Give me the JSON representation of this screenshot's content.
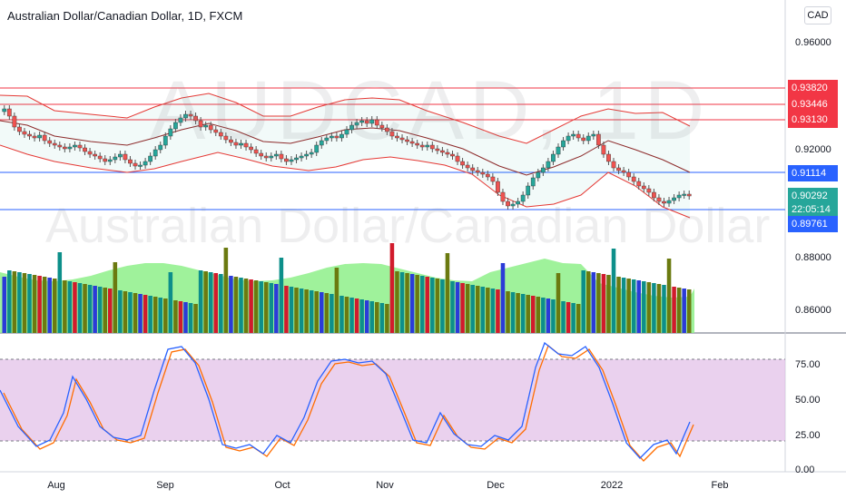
{
  "header": {
    "title": "Australian Dollar/Canadian Dollar, 1D, FXCM"
  },
  "currency_button": "CAD",
  "watermark": {
    "symbol": "AUDCAD, 1D",
    "description": "Australian Dollar/Canadian Dollar"
  },
  "price_axis": {
    "ticks": [
      "0.96000",
      "0.92000",
      "0.88000",
      "0.86000"
    ]
  },
  "price_labels": [
    {
      "text": "0.93820",
      "color": "#f23645"
    },
    {
      "text": "0.93446",
      "color": "#f23645"
    },
    {
      "text": "0.93130",
      "color": "#f23645"
    },
    {
      "text": "0.91114",
      "color": "#2962ff"
    },
    {
      "text": "0.90292",
      "color": "#26a69a"
    },
    {
      "text": "22:05:14",
      "color": "#26a69a"
    },
    {
      "text": "0.89761",
      "color": "#2962ff"
    }
  ],
  "stoch_axis": {
    "ticks": [
      "75.00",
      "50.00",
      "25.00",
      "0.00"
    ]
  },
  "time_axis": {
    "labels": [
      "Aug",
      "Sep",
      "Oct",
      "Nov",
      "Dec",
      "2022",
      "Feb"
    ]
  },
  "colors": {
    "resistance": "#f23645",
    "support": "#2962ff",
    "bollinger": "#e53935",
    "stoch_k": "#2962ff",
    "stoch_d": "#ff6d00",
    "stoch_band": "#e1bee7",
    "volume_ma": "#8ef08a"
  }
}
